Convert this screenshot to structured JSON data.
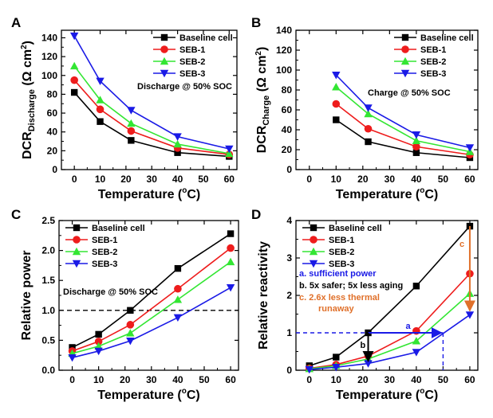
{
  "colors": {
    "baseline": "#000000",
    "seb1": "#ee1c1c",
    "seb2": "#33e633",
    "seb3": "#1a1ae6",
    "annot_a": "#1a1ae6",
    "annot_b": "#000000",
    "annot_c": "#e0702a"
  },
  "chart_data": [
    {
      "panel": "A",
      "type": "line",
      "x": [
        0,
        10,
        22,
        40,
        60
      ],
      "series": [
        {
          "name": "Baseline cell",
          "marker": "square",
          "values": [
            82,
            51,
            31,
            18,
            14
          ]
        },
        {
          "name": "SEB-1",
          "marker": "circle",
          "values": [
            95,
            64,
            41,
            23,
            16
          ]
        },
        {
          "name": "SEB-2",
          "marker": "triangle-up",
          "values": [
            110,
            74,
            49,
            27,
            17
          ]
        },
        {
          "name": "SEB-3",
          "marker": "triangle-down",
          "values": [
            142,
            94,
            63,
            35,
            22
          ]
        }
      ],
      "xlabel_main": "Temperature (",
      "xlabel_sup": "o",
      "xlabel_tail": "C)",
      "ylabel_main": "DCR",
      "ylabel_sub": "Discharge",
      "ylabel_unit": " (Ω cm",
      "ylabel_sup": "2",
      "ylabel_tail": ")",
      "xlim": [
        -5,
        63
      ],
      "ylim": [
        0,
        148
      ],
      "xticks": [
        0,
        10,
        20,
        30,
        40,
        50,
        60
      ],
      "yticks": [
        0,
        20,
        40,
        60,
        80,
        100,
        120,
        140
      ],
      "annotation": "Discharge @ 50% SOC",
      "legend": "top-right",
      "grid": false
    },
    {
      "panel": "B",
      "type": "line",
      "x": [
        10,
        22,
        40,
        60
      ],
      "series": [
        {
          "name": "Baseline cell",
          "marker": "square",
          "values": [
            50,
            28,
            17,
            12
          ]
        },
        {
          "name": "SEB-1",
          "marker": "circle",
          "values": [
            66,
            41,
            23,
            15
          ]
        },
        {
          "name": "SEB-2",
          "marker": "triangle-up",
          "values": [
            83,
            56,
            29,
            18
          ]
        },
        {
          "name": "SEB-3",
          "marker": "triangle-down",
          "values": [
            95,
            62,
            35,
            22
          ]
        }
      ],
      "xlabel_main": "Temperature (",
      "xlabel_sup": "o",
      "xlabel_tail": "C)",
      "ylabel_main": "DCR",
      "ylabel_sub": "Charge",
      "ylabel_unit": " (Ω cm",
      "ylabel_sup": "2",
      "ylabel_tail": ")",
      "xlim": [
        -5,
        63
      ],
      "ylim": [
        0,
        140
      ],
      "xticks": [
        0,
        10,
        20,
        30,
        40,
        50,
        60
      ],
      "yticks": [
        0,
        20,
        40,
        60,
        80,
        100,
        120,
        140
      ],
      "annotation": "Charge @ 50% SOC",
      "legend": "top-right",
      "grid": false
    },
    {
      "panel": "C",
      "type": "line",
      "x": [
        0,
        10,
        22,
        40,
        60
      ],
      "series": [
        {
          "name": "Baseline cell",
          "marker": "square",
          "values": [
            0.38,
            0.6,
            1.0,
            1.7,
            2.28
          ]
        },
        {
          "name": "SEB-1",
          "marker": "circle",
          "values": [
            0.32,
            0.48,
            0.76,
            1.36,
            2.04
          ]
        },
        {
          "name": "SEB-2",
          "marker": "triangle-up",
          "values": [
            0.28,
            0.4,
            0.62,
            1.18,
            1.81
          ]
        },
        {
          "name": "SEB-3",
          "marker": "triangle-down",
          "values": [
            0.21,
            0.32,
            0.49,
            0.88,
            1.38
          ]
        }
      ],
      "xlabel_main": "Temperature (",
      "xlabel_sup": "o",
      "xlabel_tail": "C)",
      "ylabel_main": "Relative power",
      "xlim": [
        -5,
        63
      ],
      "ylim": [
        0,
        2.5
      ],
      "xticks": [
        0,
        10,
        20,
        30,
        40,
        50,
        60
      ],
      "yticks": [
        0.0,
        0.5,
        1.0,
        1.5,
        2.0,
        2.5
      ],
      "ytick_labels": [
        "0.0",
        "0.5",
        "1.0",
        "1.5",
        "2.0",
        "2.5"
      ],
      "reference_line_y": 1.0,
      "annotation": "Discharge @ 50% SOC",
      "legend": "top-left",
      "grid": false
    },
    {
      "panel": "D",
      "type": "line",
      "x": [
        0,
        10,
        22,
        40,
        60
      ],
      "series": [
        {
          "name": "Baseline cell",
          "marker": "square",
          "values": [
            0.12,
            0.35,
            1.0,
            2.25,
            3.85
          ]
        },
        {
          "name": "SEB-1",
          "marker": "circle",
          "values": [
            0.05,
            0.15,
            0.38,
            1.05,
            2.58
          ]
        },
        {
          "name": "SEB-2",
          "marker": "triangle-up",
          "values": [
            0.04,
            0.12,
            0.3,
            0.78,
            2.05
          ]
        },
        {
          "name": "SEB-3",
          "marker": "triangle-down",
          "values": [
            0.02,
            0.08,
            0.18,
            0.48,
            1.48
          ]
        }
      ],
      "xlabel_main": "Temperature (",
      "xlabel_sup": "o",
      "xlabel_tail": "C)",
      "ylabel_main": "Relative reactivity",
      "xlim": [
        -5,
        63
      ],
      "ylim": [
        0,
        4
      ],
      "xticks": [
        0,
        10,
        20,
        30,
        40,
        50,
        60
      ],
      "yticks": [
        0,
        1,
        2,
        3,
        4
      ],
      "legend": "top-left",
      "grid": false,
      "notes": [
        {
          "text": "a. sufficient power",
          "color": "annot_a"
        },
        {
          "text": "b. 5x safer; 5x less aging",
          "color": "annot_b"
        },
        {
          "text": "c. 2.6x less thermal",
          "color": "annot_c"
        },
        {
          "text": "runaway",
          "color": "annot_c"
        }
      ],
      "arrow_labels": {
        "a": "a",
        "b": "b",
        "c": "c"
      },
      "arrows": {
        "a": {
          "from": [
            22,
            1.0
          ],
          "to": [
            50,
            1.0
          ]
        },
        "b": {
          "from": [
            22,
            1.0
          ],
          "to": [
            22,
            0.2
          ]
        },
        "c": {
          "from": [
            60,
            3.85
          ],
          "to": [
            60,
            1.55
          ]
        }
      },
      "guides": {
        "y": 1.0,
        "x": 50
      }
    }
  ]
}
